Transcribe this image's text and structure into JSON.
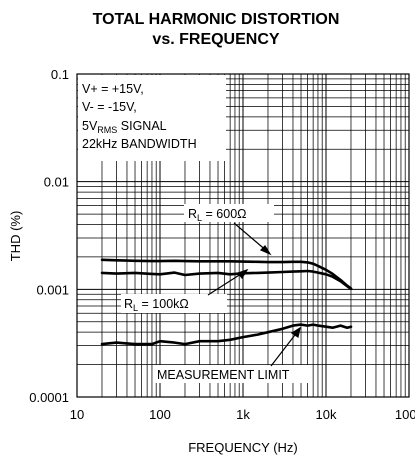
{
  "chart_data": {
    "type": "line",
    "title_line1": "TOTAL HARMONIC DISTORTION",
    "title_line2": "vs. FREQUENCY",
    "xlabel": "FREQUENCY (Hz)",
    "ylabel": "THD (%)",
    "x_scale": "log",
    "y_scale": "log",
    "xlim": [
      10,
      100000
    ],
    "ylim": [
      0.0001,
      0.1
    ],
    "x_ticks": [
      {
        "value": 10,
        "label": "10"
      },
      {
        "value": 100,
        "label": "100"
      },
      {
        "value": 1000,
        "label": "1k"
      },
      {
        "value": 10000,
        "label": "10k"
      },
      {
        "value": 100000,
        "label": "100k"
      }
    ],
    "y_ticks": [
      {
        "value": 0.1,
        "label": "0.1"
      },
      {
        "value": 0.01,
        "label": "0.01"
      },
      {
        "value": 0.001,
        "label": "0.001"
      },
      {
        "value": 0.0001,
        "label": "0.0001"
      }
    ],
    "grid": true,
    "conditions": [
      "V+ = +15V,",
      "V- = -15V,",
      "5V",
      "RMS",
      " SIGNAL",
      "22kHz BANDWIDTH"
    ],
    "series": [
      {
        "label_main": "R",
        "label_sub": "L",
        "label_rest": " = 600Ω",
        "x": [
          20,
          30,
          50,
          80,
          100,
          150,
          200,
          300,
          500,
          700,
          1000,
          1500,
          2000,
          3000,
          4000,
          5000,
          6000,
          7000,
          8000,
          10000,
          12000,
          15000,
          18000,
          20000
        ],
        "y": [
          0.00188,
          0.00186,
          0.00184,
          0.00183,
          0.00183,
          0.00184,
          0.00183,
          0.00182,
          0.00182,
          0.00182,
          0.00181,
          0.0018,
          0.00179,
          0.00179,
          0.0018,
          0.0018,
          0.00178,
          0.00173,
          0.00165,
          0.00152,
          0.00139,
          0.00122,
          0.00108,
          0.00102
        ]
      },
      {
        "label_main": "R",
        "label_sub": "L",
        "label_rest": " = 100kΩ",
        "x": [
          20,
          30,
          50,
          80,
          100,
          150,
          200,
          300,
          500,
          700,
          1000,
          1500,
          2000,
          3000,
          4000,
          5000,
          6000,
          7000,
          8000,
          10000,
          12000,
          15000,
          18000,
          20000
        ],
        "y": [
          0.00142,
          0.0014,
          0.00142,
          0.00139,
          0.00138,
          0.00143,
          0.00136,
          0.0014,
          0.00142,
          0.00138,
          0.00141,
          0.00142,
          0.00143,
          0.00145,
          0.00146,
          0.00147,
          0.00148,
          0.00146,
          0.00143,
          0.00138,
          0.00131,
          0.00119,
          0.00107,
          0.00101
        ]
      },
      {
        "label_main": "MEASUREMENT LIMIT",
        "label_sub": "",
        "label_rest": "",
        "x": [
          20,
          30,
          50,
          80,
          100,
          150,
          200,
          300,
          500,
          700,
          1000,
          1500,
          2000,
          3000,
          4000,
          5000,
          6000,
          7000,
          8000,
          10000,
          12000,
          15000,
          18000,
          20000
        ],
        "y": [
          0.00031,
          0.00032,
          0.00031,
          0.00031,
          0.00033,
          0.00032,
          0.00031,
          0.00033,
          0.00033,
          0.00034,
          0.00036,
          0.00038,
          0.0004,
          0.00043,
          0.00046,
          0.00047,
          0.00046,
          0.00047,
          0.00046,
          0.00045,
          0.00044,
          0.00046,
          0.00044,
          0.00045
        ]
      }
    ]
  }
}
